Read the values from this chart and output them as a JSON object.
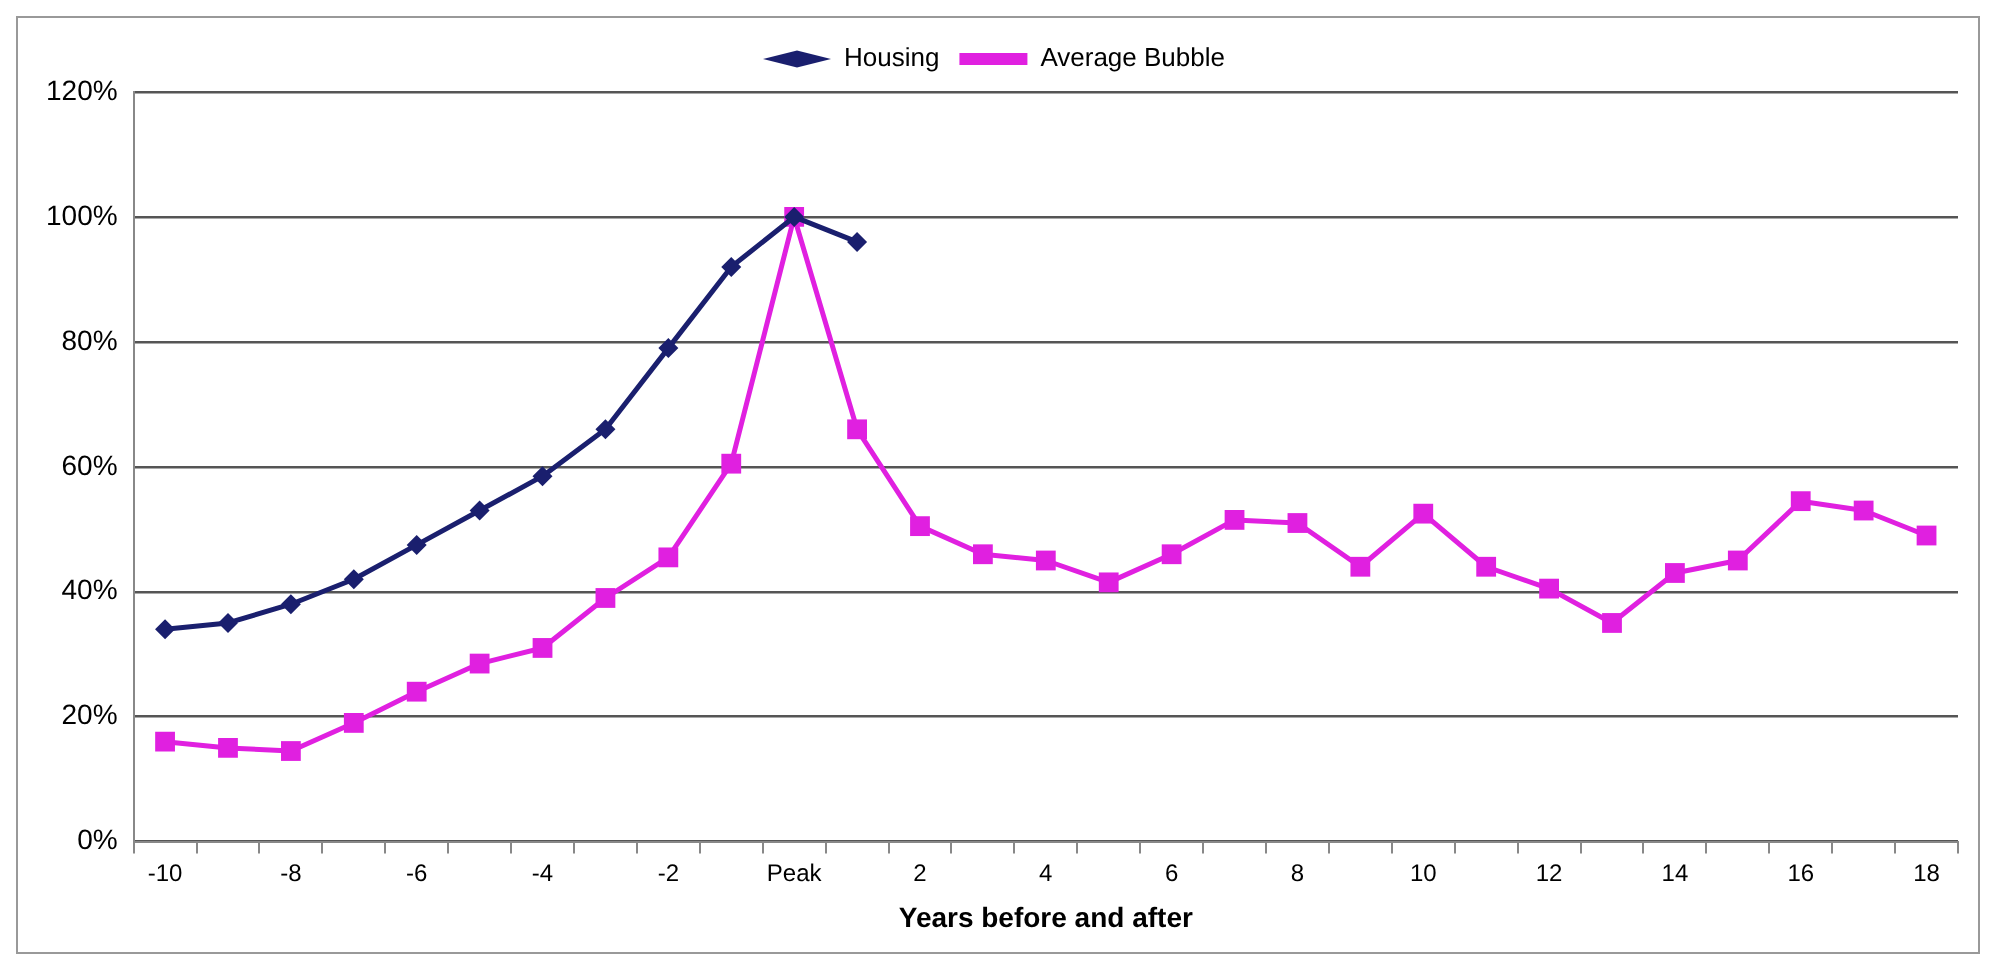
{
  "chart_data": {
    "type": "line",
    "xlabel": "Years before and after",
    "categories": [
      "-10",
      null,
      "-8",
      null,
      "-6",
      null,
      "-4",
      null,
      "-2",
      null,
      "Peak",
      null,
      "2",
      null,
      "4",
      null,
      "6",
      null,
      "8",
      null,
      "10",
      null,
      "12",
      null,
      "14",
      null,
      "16",
      null,
      "18"
    ],
    "series": [
      {
        "name": "Housing",
        "color": "#1a1f6e",
        "marker": "diamond",
        "values": [
          34,
          35,
          38,
          42,
          47.5,
          53,
          58.5,
          66,
          79,
          92,
          100,
          96,
          null,
          null,
          null,
          null,
          null,
          null,
          null,
          null,
          null,
          null,
          null,
          null,
          null,
          null,
          null,
          null,
          null
        ]
      },
      {
        "name": "Average Bubble",
        "color": "#e020e0",
        "marker": "square",
        "values": [
          16,
          15,
          14.5,
          19,
          24,
          28.5,
          31,
          39,
          45.5,
          60.5,
          100,
          66,
          50.5,
          46,
          45,
          41.5,
          46,
          51.5,
          51,
          44,
          52.5,
          44,
          40.5,
          35,
          43,
          45,
          54.5,
          53,
          49
        ]
      }
    ],
    "ylim": [
      0,
      120
    ],
    "yticks": [
      {
        "value": 0,
        "label": "0%"
      },
      {
        "value": 20,
        "label": "20%"
      },
      {
        "value": 40,
        "label": "40%"
      },
      {
        "value": 60,
        "label": "60%"
      },
      {
        "value": 80,
        "label": "80%"
      },
      {
        "value": 100,
        "label": "100%"
      },
      {
        "value": 120,
        "label": "120%"
      }
    ],
    "grid": "y",
    "legend": "top",
    "line_style": "solid"
  }
}
